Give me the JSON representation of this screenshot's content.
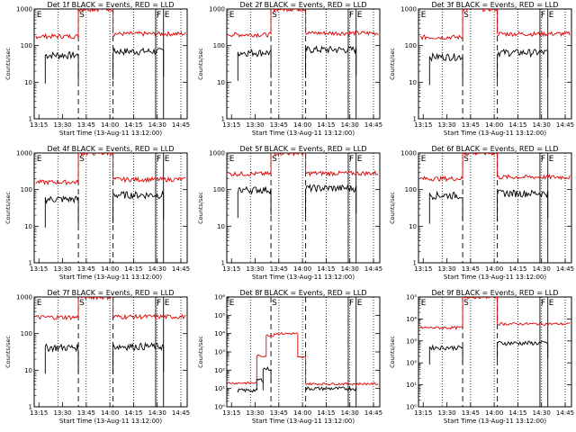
{
  "colors": {
    "events": "#000000",
    "lld": "#dd0000",
    "frame": "#000000",
    "background": "#ffffff"
  },
  "chart_data": [
    {
      "type": "line",
      "log_scale_y": true,
      "title": "Det 1f BLACK = Events, RED = LLD",
      "xlabel": "Start Time (13-Aug-11 13:12:00)",
      "ylabel": "Counts/sec",
      "x_ticks": [
        "13:15",
        "13:30",
        "13:45",
        "14:00",
        "14:15",
        "14:30",
        "14:45"
      ],
      "y_ticks": [
        "1",
        "10",
        "100",
        "1000"
      ],
      "ylim": [
        1,
        1000
      ],
      "markers": [
        "E",
        "S",
        "F",
        "E"
      ],
      "series": [
        {
          "name": "BLACK = Events",
          "color": "#000000",
          "segments": [
            {
              "start": "13:19",
              "end": "13:40",
              "level": 55
            },
            {
              "start": "14:02",
              "end": "14:34",
              "level": 70
            }
          ]
        },
        {
          "name": "RED = LLD",
          "color": "#dd0000",
          "segments": [
            {
              "start": "13:13",
              "end": "13:40",
              "level": 180
            },
            {
              "start": "13:40",
              "end": "14:02",
              "level": 1000
            },
            {
              "start": "14:02",
              "end": "14:48",
              "level": 210
            }
          ]
        }
      ]
    },
    {
      "type": "line",
      "log_scale_y": true,
      "title": "Det 2f BLACK = Events, RED = LLD",
      "xlabel": "Start Time (13-Aug-11 13:12:00)",
      "ylabel": "Counts/sec",
      "x_ticks": [
        "13:15",
        "13:30",
        "13:45",
        "14:00",
        "14:15",
        "14:30",
        "14:45"
      ],
      "y_ticks": [
        "1",
        "10",
        "100",
        "1000"
      ],
      "ylim": [
        1,
        1000
      ],
      "markers": [
        "E",
        "S",
        "F",
        "E"
      ],
      "series": [
        {
          "name": "BLACK = Events",
          "color": "#000000",
          "segments": [
            {
              "start": "13:19",
              "end": "13:40",
              "level": 65
            },
            {
              "start": "14:02",
              "end": "14:34",
              "level": 78
            }
          ]
        },
        {
          "name": "RED = LLD",
          "color": "#dd0000",
          "segments": [
            {
              "start": "13:13",
              "end": "13:40",
              "level": 200
            },
            {
              "start": "13:40",
              "end": "14:02",
              "level": 1000
            },
            {
              "start": "14:02",
              "end": "14:48",
              "level": 220
            }
          ]
        }
      ]
    },
    {
      "type": "line",
      "log_scale_y": true,
      "title": "Det 3f BLACK = Events, RED = LLD",
      "xlabel": "Start Time (13-Aug-11 13:12:00)",
      "ylabel": "Counts/sec",
      "x_ticks": [
        "13:15",
        "13:30",
        "13:45",
        "14:00",
        "14:15",
        "14:30",
        "14:45"
      ],
      "y_ticks": [
        "1",
        "10",
        "100",
        "1000"
      ],
      "ylim": [
        1,
        1000
      ],
      "markers": [
        "E",
        "S",
        "F",
        "E"
      ],
      "series": [
        {
          "name": "BLACK = Events",
          "color": "#000000",
          "segments": [
            {
              "start": "13:19",
              "end": "13:40",
              "level": 50
            },
            {
              "start": "14:02",
              "end": "14:34",
              "level": 65
            }
          ]
        },
        {
          "name": "RED = LLD",
          "color": "#dd0000",
          "segments": [
            {
              "start": "13:13",
              "end": "13:40",
              "level": 170
            },
            {
              "start": "13:40",
              "end": "14:02",
              "level": 1000
            },
            {
              "start": "14:02",
              "end": "14:48",
              "level": 210
            }
          ]
        }
      ]
    },
    {
      "type": "line",
      "log_scale_y": true,
      "title": "Det 4f BLACK = Events, RED = LLD",
      "xlabel": "Start Time (13-Aug-11 13:12:00)",
      "ylabel": "Counts/sec",
      "x_ticks": [
        "13:15",
        "13:30",
        "13:45",
        "14:00",
        "14:15",
        "14:30",
        "14:45"
      ],
      "y_ticks": [
        "1",
        "10",
        "100",
        "1000"
      ],
      "ylim": [
        1,
        1000
      ],
      "markers": [
        "E",
        "S",
        "F",
        "E"
      ],
      "series": [
        {
          "name": "BLACK = Events",
          "color": "#000000",
          "segments": [
            {
              "start": "13:19",
              "end": "13:40",
              "level": 55
            },
            {
              "start": "14:02",
              "end": "14:34",
              "level": 72
            }
          ]
        },
        {
          "name": "RED = LLD",
          "color": "#dd0000",
          "segments": [
            {
              "start": "13:13",
              "end": "13:40",
              "level": 160
            },
            {
              "start": "13:40",
              "end": "14:02",
              "level": 1000
            },
            {
              "start": "14:02",
              "end": "14:48",
              "level": 190
            }
          ]
        }
      ]
    },
    {
      "type": "line",
      "log_scale_y": true,
      "title": "Det 5f BLACK = Events, RED = LLD",
      "xlabel": "Start Time (13-Aug-11 13:12:00)",
      "ylabel": "Counts/sec",
      "x_ticks": [
        "13:15",
        "13:30",
        "13:45",
        "14:00",
        "14:15",
        "14:30",
        "14:45"
      ],
      "y_ticks": [
        "1",
        "10",
        "100",
        "1000"
      ],
      "ylim": [
        1,
        1000
      ],
      "markers": [
        "E",
        "S",
        "F",
        "E"
      ],
      "series": [
        {
          "name": "BLACK = Events",
          "color": "#000000",
          "segments": [
            {
              "start": "13:19",
              "end": "13:40",
              "level": 100
            },
            {
              "start": "14:02",
              "end": "14:34",
              "level": 110
            }
          ]
        },
        {
          "name": "RED = LLD",
          "color": "#dd0000",
          "segments": [
            {
              "start": "13:13",
              "end": "13:40",
              "level": 270
            },
            {
              "start": "13:40",
              "end": "14:02",
              "level": 1000
            },
            {
              "start": "14:02",
              "end": "14:48",
              "level": 280
            }
          ]
        }
      ]
    },
    {
      "type": "line",
      "log_scale_y": true,
      "title": "Det 6f BLACK = Events, RED = LLD",
      "xlabel": "Start Time (13-Aug-11 13:12:00)",
      "ylabel": "Counts/sec",
      "x_ticks": [
        "13:15",
        "13:30",
        "13:45",
        "14:00",
        "14:15",
        "14:30",
        "14:45"
      ],
      "y_ticks": [
        "1",
        "10",
        "100",
        "1000"
      ],
      "ylim": [
        1,
        1000
      ],
      "markers": [
        "E",
        "S",
        "F",
        "E"
      ],
      "series": [
        {
          "name": "BLACK = Events",
          "color": "#000000",
          "segments": [
            {
              "start": "13:19",
              "end": "13:40",
              "level": 70
            },
            {
              "start": "14:02",
              "end": "14:34",
              "level": 80
            }
          ]
        },
        {
          "name": "RED = LLD",
          "color": "#dd0000",
          "segments": [
            {
              "start": "13:13",
              "end": "13:40",
              "level": 200
            },
            {
              "start": "13:40",
              "end": "14:02",
              "level": 1000
            },
            {
              "start": "14:02",
              "end": "14:48",
              "level": 220
            }
          ]
        }
      ]
    },
    {
      "type": "line",
      "log_scale_y": true,
      "title": "Det 7f BLACK = Events, RED = LLD",
      "xlabel": "Start Time (13-Aug-11 13:12:00)",
      "ylabel": "Counts/sec",
      "x_ticks": [
        "13:15",
        "13:30",
        "13:45",
        "14:00",
        "14:15",
        "14:30",
        "14:45"
      ],
      "y_ticks": [
        "1",
        "10",
        "100",
        "1000"
      ],
      "ylim": [
        1,
        1000
      ],
      "markers": [
        "E",
        "S",
        "F",
        "E"
      ],
      "series": [
        {
          "name": "BLACK = Events",
          "color": "#000000",
          "segments": [
            {
              "start": "13:19",
              "end": "13:40",
              "level": 42
            },
            {
              "start": "14:02",
              "end": "14:34",
              "level": 45
            }
          ]
        },
        {
          "name": "RED = LLD",
          "color": "#dd0000",
          "segments": [
            {
              "start": "13:13",
              "end": "13:40",
              "level": 280
            },
            {
              "start": "13:40",
              "end": "14:02",
              "level": 1000
            },
            {
              "start": "14:02",
              "end": "14:48",
              "level": 290
            }
          ]
        }
      ]
    },
    {
      "type": "line",
      "log_scale_y": true,
      "title": "Det 8f BLACK = Events, RED = LLD",
      "xlabel": "Start Time (13-Aug-11 13:12:00)",
      "ylabel": "Counts/sec",
      "x_ticks": [
        "13:15",
        "13:30",
        "13:45",
        "14:00",
        "14:15",
        "14:30",
        "14:45"
      ],
      "y_ticks": [
        "10⁰",
        "10¹",
        "10²",
        "10³",
        "10⁴",
        "10⁵",
        "10⁶"
      ],
      "ylim": [
        1,
        1000000
      ],
      "markers": [
        "E",
        "S",
        "F",
        "E"
      ],
      "series": [
        {
          "name": "BLACK = Events",
          "color": "#000000",
          "segments": [
            {
              "start": "13:19",
              "end": "13:31",
              "level": 8
            },
            {
              "start": "13:31",
              "end": "13:35",
              "level": 30
            },
            {
              "start": "13:35",
              "end": "13:40",
              "level": 120
            },
            {
              "start": "14:02",
              "end": "14:34",
              "level": 10
            }
          ]
        },
        {
          "name": "RED = LLD",
          "color": "#dd0000",
          "segments": [
            {
              "start": "13:13",
              "end": "13:31",
              "level": 20
            },
            {
              "start": "13:31",
              "end": "13:37",
              "level": 600
            },
            {
              "start": "13:37",
              "end": "13:42",
              "level": 8000
            },
            {
              "start": "13:42",
              "end": "13:57",
              "level": 10000
            },
            {
              "start": "13:57",
              "end": "14:02",
              "level": 500
            },
            {
              "start": "14:02",
              "end": "14:48",
              "level": 18
            }
          ]
        }
      ]
    },
    {
      "type": "line",
      "log_scale_y": true,
      "title": "Det 9f BLACK = Events, RED = LLD",
      "xlabel": "Start Time (13-Aug-11 13:12:00)",
      "ylabel": "Counts/sec",
      "x_ticks": [
        "13:15",
        "13:30",
        "13:45",
        "14:00",
        "14:15",
        "14:30",
        "14:45"
      ],
      "y_ticks": [
        "10⁰",
        "10¹",
        "10²",
        "10³",
        "10⁴",
        "10⁵"
      ],
      "ylim": [
        1,
        100000
      ],
      "markers": [
        "E",
        "S",
        "F",
        "E"
      ],
      "series": [
        {
          "name": "BLACK = Events",
          "color": "#000000",
          "segments": [
            {
              "start": "13:19",
              "end": "13:40",
              "level": 500
            },
            {
              "start": "14:02",
              "end": "14:34",
              "level": 800
            }
          ]
        },
        {
          "name": "RED = LLD",
          "color": "#dd0000",
          "segments": [
            {
              "start": "13:13",
              "end": "13:40",
              "level": 4000
            },
            {
              "start": "13:40",
              "end": "14:02",
              "level": 100000
            },
            {
              "start": "14:02",
              "end": "14:48",
              "level": 6000
            }
          ]
        }
      ]
    }
  ]
}
